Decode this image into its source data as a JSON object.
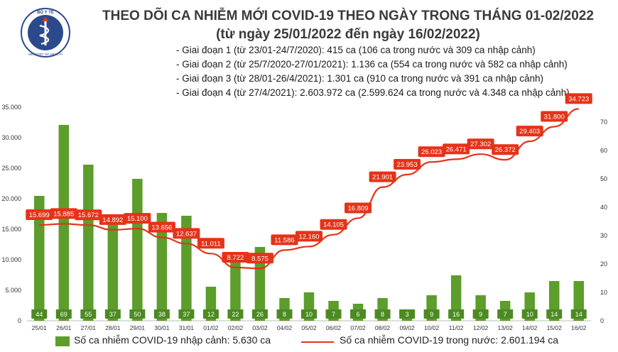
{
  "header": {
    "title_line1": "THEO DÕI CA NHIỄM MỚI COVID-19 THEO NGÀY TRONG THÁNG 01-02/2022",
    "title_line2": "(từ ngày 25/01/2022 đến ngày 16/02/2022)",
    "logo_text_top": "BỘ Y TẾ",
    "logo_text_bottom": "MINISTRY OF HEALTH"
  },
  "notes": [
    "- Giai đoạn 1 (từ 23/01-24/7/2020): 415 ca (106 ca trong nước và 309 ca nhập cảnh)",
    "- Giai đoạn 2 (từ 25/7/2020-27/01/2021): 1.136 ca (554 ca trong nước và 582 ca nhập cảnh)",
    "- Giai đoạn 3 (từ 28/01-26/4/2021): 1.301 ca (910 ca trong nước và 391 ca nhập cảnh)",
    "- Giai đoạn 4 (từ 27/4/2021): 2.603.972 ca (2.599.624 ca trong nước và 4.348 ca nhập cảnh)"
  ],
  "legend": {
    "bar_label": "Số ca nhiễm COVID-19 nhập cảnh: 5.630 ca",
    "line_label": "Số ca nhiễm COVID-19 trong nước: 2.601.194 ca"
  },
  "colors": {
    "bar": "#5c9d2c",
    "line": "#e53319",
    "label_bg": "#e53319",
    "bar_label_bg": "#4c8a22"
  },
  "chart_data": {
    "type": "bar+line",
    "categories": [
      "25/01",
      "26/01",
      "27/01",
      "28/01",
      "29/01",
      "30/01",
      "31/01",
      "01/02",
      "02/02",
      "03/02",
      "04/02",
      "05/02",
      "06/02",
      "07/02",
      "08/02",
      "09/02",
      "10/02",
      "11/02",
      "12/02",
      "13/02",
      "14/02",
      "15/02",
      "16/02"
    ],
    "series": [
      {
        "name": "Số ca nhiễm COVID-19 nhập cảnh: 5.630 ca",
        "type": "bar",
        "axis": "right",
        "values": [
          44,
          69,
          55,
          37,
          50,
          38,
          37,
          12,
          22,
          26,
          8,
          10,
          7,
          6,
          8,
          3,
          9,
          16,
          9,
          7,
          10,
          14,
          14
        ],
        "labels": [
          "44",
          "69",
          "55",
          "37",
          "50",
          "38",
          "37",
          "12",
          "22",
          "26",
          "8",
          "10",
          "7",
          "6",
          "8",
          "3",
          "9",
          "16",
          "9",
          "7",
          "10",
          "14",
          "14"
        ]
      },
      {
        "name": "Số ca nhiễm COVID-19 trong nước: 2.601.194 ca",
        "type": "line",
        "axis": "left",
        "values": [
          15699,
          15885,
          15672,
          14892,
          15100,
          13656,
          12637,
          11011,
          8722,
          8575,
          11586,
          12160,
          14105,
          16809,
          21901,
          23953,
          26023,
          26471,
          27302,
          26372,
          29403,
          31800,
          34723
        ],
        "labels": [
          "15.699",
          "15.885",
          "15.672",
          "14.892",
          "15.100",
          "13.656",
          "12.637",
          "11.011",
          "8.722",
          "8.575",
          "11.586",
          "12.160",
          "14.105",
          "16.809",
          "21.901",
          "23.953",
          "26.023",
          "26.471",
          "27.302",
          "26.372",
          "29.403",
          "31.800",
          "34.723"
        ]
      }
    ],
    "y_left": {
      "min": 0,
      "max": 35000,
      "ticks": [
        0,
        5000,
        10000,
        15000,
        20000,
        25000,
        30000,
        35000
      ],
      "tick_labels": [
        "0",
        "5.000",
        "10.000",
        "15.000",
        "20.000",
        "25.000",
        "30.000",
        "35.000"
      ]
    },
    "y_right": {
      "min": 0,
      "max": 80,
      "ticks": [
        0,
        10,
        20,
        30,
        40,
        50,
        60,
        70
      ],
      "tick_labels": [
        "0",
        "10",
        "20",
        "30",
        "40",
        "50",
        "60",
        "70"
      ]
    },
    "grid": false,
    "legend_position": "bottom"
  }
}
